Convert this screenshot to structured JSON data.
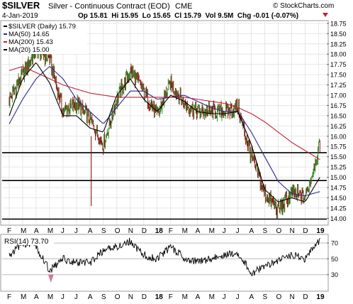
{
  "header": {
    "symbol": "$SILVER",
    "name": "Silver - Continuous Contract (EOD)",
    "exchange": "CME",
    "copyright": "© StockCharts.com",
    "date": "4-Jan-2019",
    "quote": "Op 15.81  Hi 15.95  Lo 15.65  Cl 15.79  Vol 9.5M  Chg -0.01 (-0.07%)",
    "chg_arrow": "down"
  },
  "legend": [
    {
      "label": "$SILVER (Daily) 15.79",
      "color": "#000000"
    },
    {
      "label": "MA(50) 14.65",
      "color": "#2a2a8c"
    },
    {
      "label": "MA(200) 15.43",
      "color": "#c0203a"
    },
    {
      "label": "MA(20) 15.00",
      "color": "#000000"
    }
  ],
  "rsi_label": "RSI(14) 73.70",
  "colors": {
    "up": "#1a8a1a",
    "down": "#8b0000",
    "ma50": "#2a2a8c",
    "ma200": "#c0203a",
    "ma20": "#000000",
    "rsi_over": "#c04060"
  },
  "chart_data": [
    {
      "type": "line",
      "title": "$SILVER Silver - Continuous Contract (EOD) CME",
      "ylim": [
        13.85,
        18.8
      ],
      "y_ticks": [
        "14.00",
        "14.25",
        "14.50",
        "14.75",
        "15.00",
        "15.25",
        "15.50",
        "15.75",
        "16.00",
        "16.25",
        "16.50",
        "16.75",
        "17.00",
        "17.25",
        "17.50",
        "17.75",
        "18.00",
        "18.25",
        "18.50",
        "18.75"
      ],
      "x_ticks": [
        "F",
        "M",
        "A",
        "M",
        "J",
        "J",
        "A",
        "S",
        "O",
        "N",
        "D",
        "18",
        "F",
        "M",
        "A",
        "M",
        "J",
        "J",
        "A",
        "S",
        "O",
        "N",
        "D",
        "19"
      ],
      "horizontal_lines": [
        15.6,
        14.92,
        13.98
      ],
      "series": [
        {
          "name": "$SILVER (Daily)",
          "last": 15.79,
          "x": [
            0,
            1,
            2,
            3,
            4,
            5,
            6,
            7,
            8,
            9,
            10,
            11,
            12,
            13,
            14,
            15,
            16,
            17,
            18,
            19,
            20,
            21,
            22,
            23.1
          ],
          "values": [
            16.9,
            17.5,
            18.1,
            17.9,
            16.6,
            16.8,
            16.4,
            15.8,
            16.9,
            17.6,
            17.1,
            16.5,
            17.3,
            16.8,
            16.6,
            16.6,
            16.6,
            16.7,
            15.5,
            14.6,
            14.2,
            14.6,
            14.5,
            15.79
          ]
        },
        {
          "name": "MA(50)",
          "last": 14.65,
          "x": [
            0,
            1,
            2,
            3,
            4,
            5,
            6,
            7,
            8,
            9,
            10,
            11,
            12,
            13,
            14,
            15,
            16,
            17,
            18,
            19,
            20,
            21,
            22,
            23.1
          ],
          "values": [
            16.3,
            16.9,
            17.4,
            17.7,
            17.4,
            16.9,
            16.6,
            16.3,
            16.7,
            17.1,
            17.1,
            16.9,
            16.95,
            17.0,
            16.85,
            16.7,
            16.6,
            16.6,
            16.1,
            15.5,
            14.9,
            14.6,
            14.55,
            14.65
          ]
        },
        {
          "name": "MA(200)",
          "last": 15.43,
          "x": [
            0,
            1,
            2,
            3,
            4,
            5,
            6,
            7,
            8,
            9,
            10,
            11,
            12,
            13,
            14,
            15,
            16,
            17,
            18,
            19,
            20,
            21,
            22,
            23.1
          ],
          "values": [
            17.6,
            17.7,
            17.55,
            17.4,
            17.25,
            17.15,
            17.05,
            17.0,
            16.95,
            16.95,
            16.95,
            16.95,
            16.95,
            16.95,
            16.9,
            16.85,
            16.8,
            16.7,
            16.55,
            16.35,
            16.1,
            15.85,
            15.65,
            15.43
          ]
        },
        {
          "name": "MA(20)",
          "last": 15.0,
          "x": [
            0,
            1,
            2,
            3,
            4,
            5,
            6,
            7,
            8,
            9,
            10,
            11,
            12,
            13,
            14,
            15,
            16,
            17,
            18,
            19,
            20,
            21,
            22,
            23.1
          ],
          "values": [
            16.5,
            17.4,
            17.8,
            17.3,
            16.5,
            16.5,
            16.2,
            16.1,
            17.0,
            17.4,
            16.9,
            16.6,
            17.0,
            16.85,
            16.6,
            16.55,
            16.55,
            16.6,
            15.8,
            14.7,
            14.4,
            14.5,
            14.4,
            15.0
          ]
        }
      ]
    },
    {
      "type": "line",
      "title": "RSI(14)",
      "ylim": [
        10,
        80
      ],
      "y_ticks": [
        "30",
        "50",
        "70"
      ],
      "x_ticks": [
        "F",
        "M",
        "A",
        "M",
        "J",
        "J",
        "A",
        "S",
        "O",
        "N",
        "D",
        "18",
        "F",
        "M",
        "A",
        "M",
        "J",
        "J",
        "A",
        "S",
        "O",
        "N",
        "D",
        "19"
      ],
      "series": [
        {
          "name": "RSI(14)",
          "last": 73.7,
          "x": [
            0,
            1,
            2,
            3,
            4,
            5,
            6,
            7,
            8,
            9,
            10,
            11,
            12,
            13,
            14,
            15,
            16,
            17,
            18,
            19,
            20,
            21,
            22,
            23.1
          ],
          "values": [
            55,
            70,
            66,
            35,
            50,
            45,
            45,
            60,
            66,
            72,
            55,
            50,
            65,
            52,
            46,
            50,
            55,
            58,
            32,
            40,
            48,
            55,
            50,
            73.7
          ]
        }
      ]
    }
  ]
}
